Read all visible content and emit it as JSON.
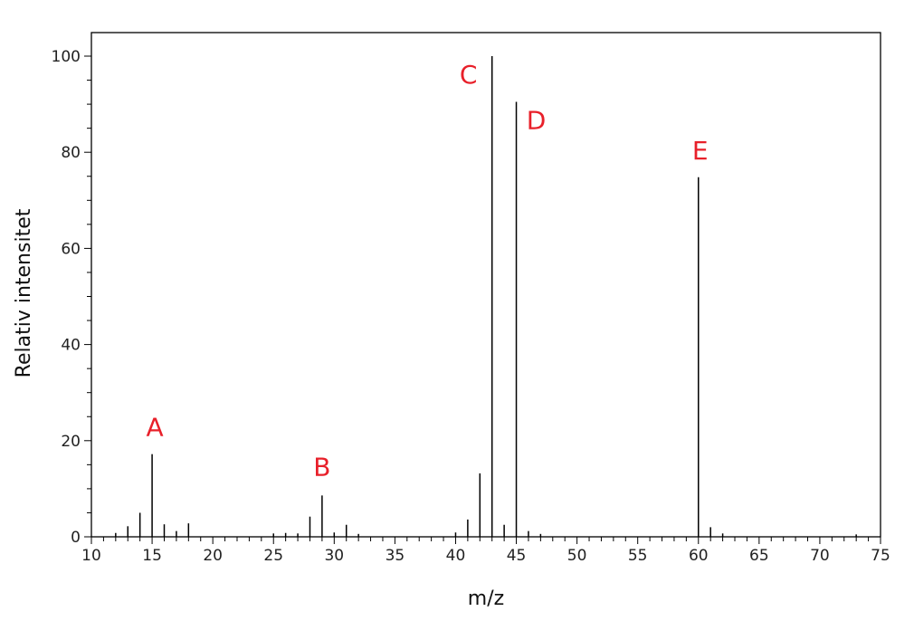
{
  "chart_data": {
    "type": "bar",
    "xlabel": "m/z",
    "ylabel": "Relativ intensitet",
    "xlim": [
      10,
      75
    ],
    "ylim": [
      0,
      104
    ],
    "x_ticks": [
      "10",
      "15",
      "20",
      "25",
      "30",
      "35",
      "40",
      "45",
      "50",
      "55",
      "60",
      "65",
      "70",
      "75"
    ],
    "y_ticks": [
      "0",
      "20",
      "40",
      "60",
      "80",
      "100"
    ],
    "grid": false,
    "peaks": [
      {
        "x": 12,
        "y": 0.8
      },
      {
        "x": 13,
        "y": 2.2
      },
      {
        "x": 14,
        "y": 5.0
      },
      {
        "x": 15,
        "y": 17.2
      },
      {
        "x": 16,
        "y": 2.6
      },
      {
        "x": 17,
        "y": 1.2
      },
      {
        "x": 18,
        "y": 2.8
      },
      {
        "x": 25,
        "y": 0.7
      },
      {
        "x": 26,
        "y": 0.8
      },
      {
        "x": 27,
        "y": 0.7
      },
      {
        "x": 28,
        "y": 4.2
      },
      {
        "x": 29,
        "y": 8.6
      },
      {
        "x": 30,
        "y": 0.9
      },
      {
        "x": 31,
        "y": 2.5
      },
      {
        "x": 32,
        "y": 0.6
      },
      {
        "x": 40,
        "y": 0.9
      },
      {
        "x": 41,
        "y": 3.6
      },
      {
        "x": 42,
        "y": 13.2
      },
      {
        "x": 43,
        "y": 100
      },
      {
        "x": 44,
        "y": 2.5
      },
      {
        "x": 45,
        "y": 90.5
      },
      {
        "x": 46,
        "y": 1.2
      },
      {
        "x": 47,
        "y": 0.6
      },
      {
        "x": 60,
        "y": 74.8
      },
      {
        "x": 61,
        "y": 2.0
      },
      {
        "x": 62,
        "y": 0.7
      },
      {
        "x": 73,
        "y": 0.5
      }
    ],
    "annotations": [
      {
        "text": "A",
        "x": 15,
        "y": 17.2
      },
      {
        "text": "B",
        "x": 29,
        "y": 8.6
      },
      {
        "text": "C",
        "x": 43,
        "y": 100
      },
      {
        "text": "D",
        "x": 45,
        "y": 90.5
      },
      {
        "text": "E",
        "x": 60,
        "y": 74.8
      }
    ],
    "colors": {
      "bars": "#000000",
      "axes": "#000000",
      "annotation": "#e8202a"
    }
  }
}
